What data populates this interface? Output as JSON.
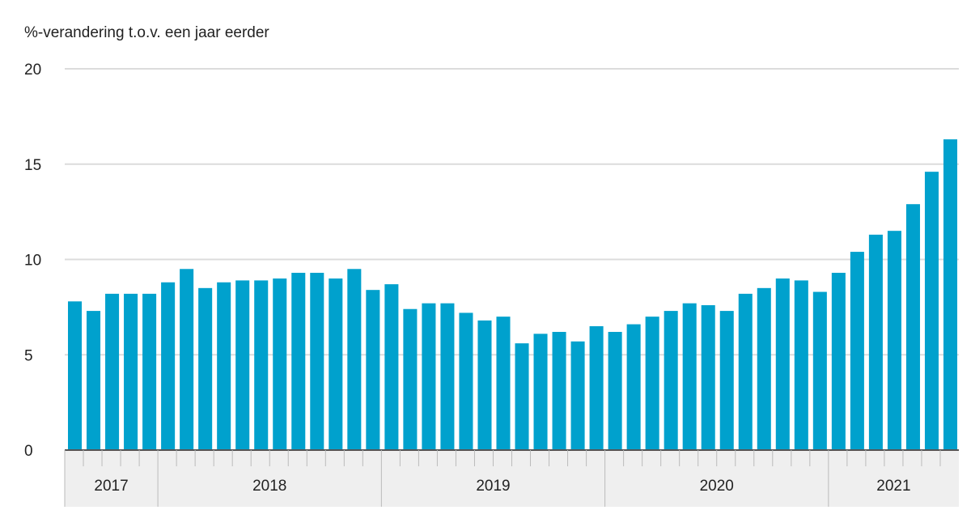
{
  "chart_data": {
    "type": "bar",
    "subtitle": "%-verandering t.o.v. een jaar eerder",
    "ylim": [
      0,
      20
    ],
    "yticks": [
      0,
      5,
      10,
      15,
      20
    ],
    "grid": true,
    "bar_color": "#00a1cd",
    "years": [
      {
        "label": "2017",
        "months": 5
      },
      {
        "label": "2018",
        "months": 12
      },
      {
        "label": "2019",
        "months": 12
      },
      {
        "label": "2020",
        "months": 12
      },
      {
        "label": "2021",
        "months": 7
      }
    ],
    "values": [
      7.8,
      7.3,
      8.2,
      8.2,
      8.2,
      8.8,
      9.5,
      8.5,
      8.8,
      8.9,
      8.9,
      9.0,
      9.3,
      9.3,
      9.0,
      9.5,
      8.4,
      8.7,
      7.4,
      7.7,
      7.7,
      7.2,
      6.8,
      7.0,
      5.6,
      6.1,
      6.2,
      5.7,
      6.5,
      6.2,
      6.6,
      7.0,
      7.3,
      7.7,
      7.6,
      7.3,
      8.2,
      8.5,
      9.0,
      8.9,
      8.3,
      9.3,
      10.4,
      11.3,
      11.5,
      12.9,
      14.6,
      16.3
    ]
  }
}
